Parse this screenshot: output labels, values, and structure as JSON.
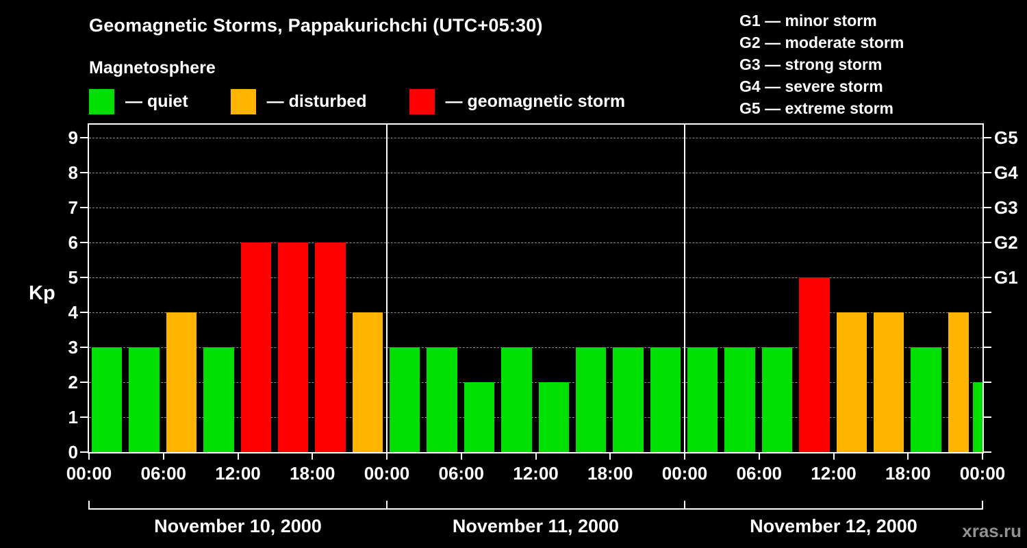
{
  "header": {
    "title": "Geomagnetic Storms, Pappakurichchi (UTC+05:30)",
    "subtitle": "Magnetosphere"
  },
  "legend": {
    "items": [
      {
        "key": "quiet",
        "label": "— quiet",
        "color": "#00e000"
      },
      {
        "key": "disturbed",
        "label": "— disturbed",
        "color": "#ffb400"
      },
      {
        "key": "storm",
        "label": "— geomagnetic storm",
        "color": "#ff0000"
      }
    ]
  },
  "g_legend": {
    "items": [
      "G1 — minor storm",
      "G2 — moderate storm",
      "G3 — strong storm",
      "G4 — severe storm",
      "G5 — extreme storm"
    ]
  },
  "chart_data": {
    "type": "bar",
    "title": "Geomagnetic Storms, Pappakurichchi (UTC+05:30)",
    "ylabel": "Kp",
    "ylim": [
      0,
      9
    ],
    "y_ticks": [
      0,
      1,
      2,
      3,
      4,
      5,
      6,
      7,
      8,
      9
    ],
    "grid": "dashed horizontal lines at each integer Kp value",
    "legend_position": "top-left",
    "right_axis_labels": [
      {
        "label": "G1",
        "value": 5
      },
      {
        "label": "G2",
        "value": 6
      },
      {
        "label": "G3",
        "value": 7
      },
      {
        "label": "G4",
        "value": 8
      },
      {
        "label": "G5",
        "value": 9
      }
    ],
    "days": [
      {
        "date": "November 10, 2000",
        "values": [
          3,
          3,
          4,
          3,
          6,
          6,
          6,
          4
        ]
      },
      {
        "date": "November 11, 2000",
        "values": [
          3,
          3,
          2,
          3,
          2,
          3,
          3,
          3
        ]
      },
      {
        "date": "November 12, 2000",
        "values": [
          3,
          3,
          3,
          5,
          4,
          4,
          3,
          4
        ]
      }
    ],
    "partial_bar": {
      "value": 2
    },
    "interval_hours": 3,
    "x_ticks_per_day": [
      "00:00",
      "06:00",
      "12:00",
      "18:00"
    ],
    "final_x_tick": "00:00",
    "color_rules": {
      "quiet_max": 3,
      "disturbed_max": 4
    },
    "colors": {
      "quiet": "#00e000",
      "disturbed": "#ffb400",
      "storm": "#ff0000"
    }
  },
  "watermark": "xras.ru"
}
